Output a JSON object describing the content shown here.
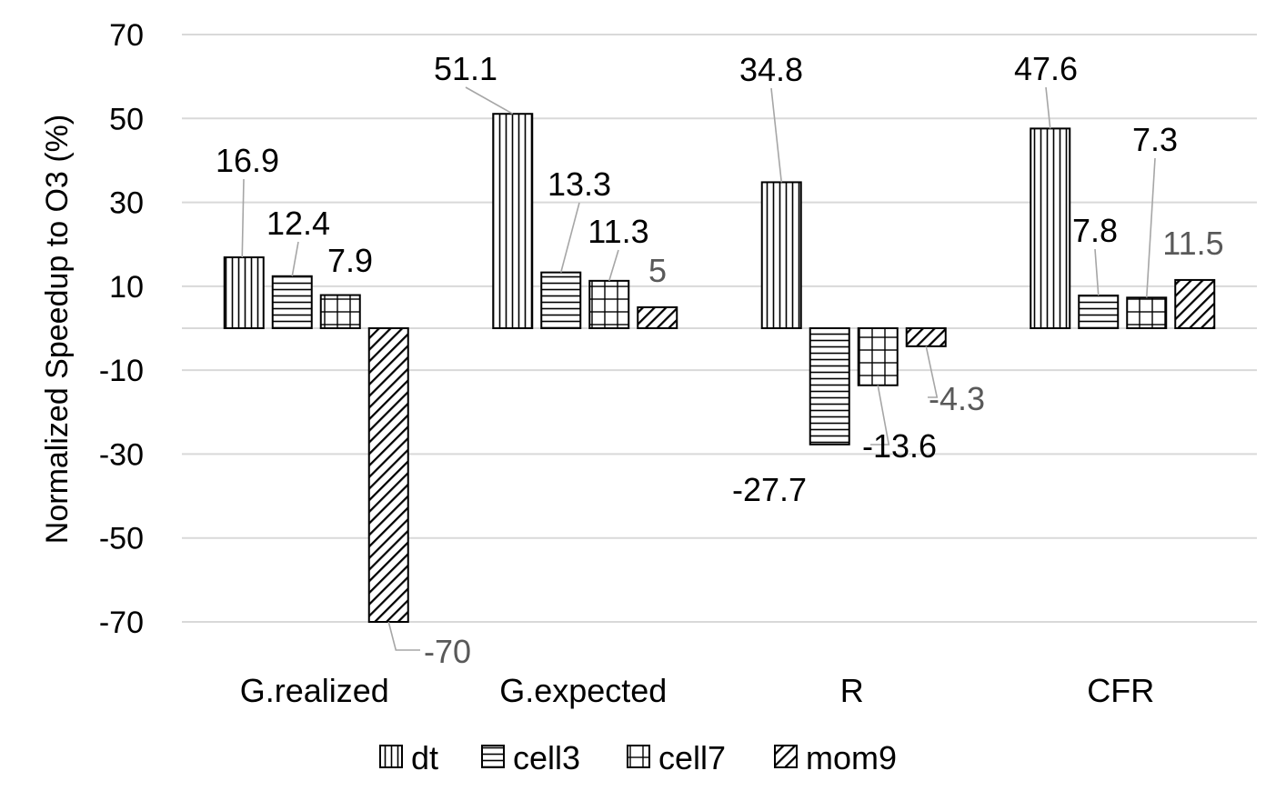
{
  "chart_data": {
    "type": "bar",
    "title": "",
    "xlabel": "",
    "ylabel": "Normalized Speedup to O3 (%)",
    "ylim": [
      -70,
      70
    ],
    "yticks": [
      70,
      50,
      30,
      10,
      -10,
      -30,
      -50,
      -70
    ],
    "grid": true,
    "legend_position": "bottom",
    "categories": [
      "G.realized",
      "G.expected",
      "R",
      "CFR"
    ],
    "series": [
      {
        "name": "dt",
        "pattern": "vertical-lines",
        "values": [
          16.9,
          51.1,
          34.8,
          47.6
        ],
        "labels": [
          "16.9",
          "51.1",
          "34.8",
          "47.6"
        ]
      },
      {
        "name": "cell3",
        "pattern": "horizontal-lines",
        "values": [
          12.4,
          13.3,
          -27.7,
          7.8
        ],
        "labels": [
          "12.4",
          "13.3",
          "-27.7",
          "7.8"
        ]
      },
      {
        "name": "cell7",
        "pattern": "grid",
        "values": [
          7.9,
          11.3,
          -13.6,
          7.3
        ],
        "labels": [
          "7.9",
          "11.3",
          "-13.6",
          "7.3"
        ]
      },
      {
        "name": "mom9",
        "pattern": "diagonal-lines",
        "values": [
          -70,
          5,
          -4.3,
          11.5
        ],
        "labels": [
          "-70",
          "5",
          "-4.3",
          "11.5"
        ]
      }
    ],
    "colors": {
      "bar_fill": "#ffffff",
      "bar_stroke": "#000000",
      "grid": "#d9d9d9",
      "leader": "#a6a6a6",
      "label_dark": "#000000",
      "label_gray": "#595959"
    }
  }
}
